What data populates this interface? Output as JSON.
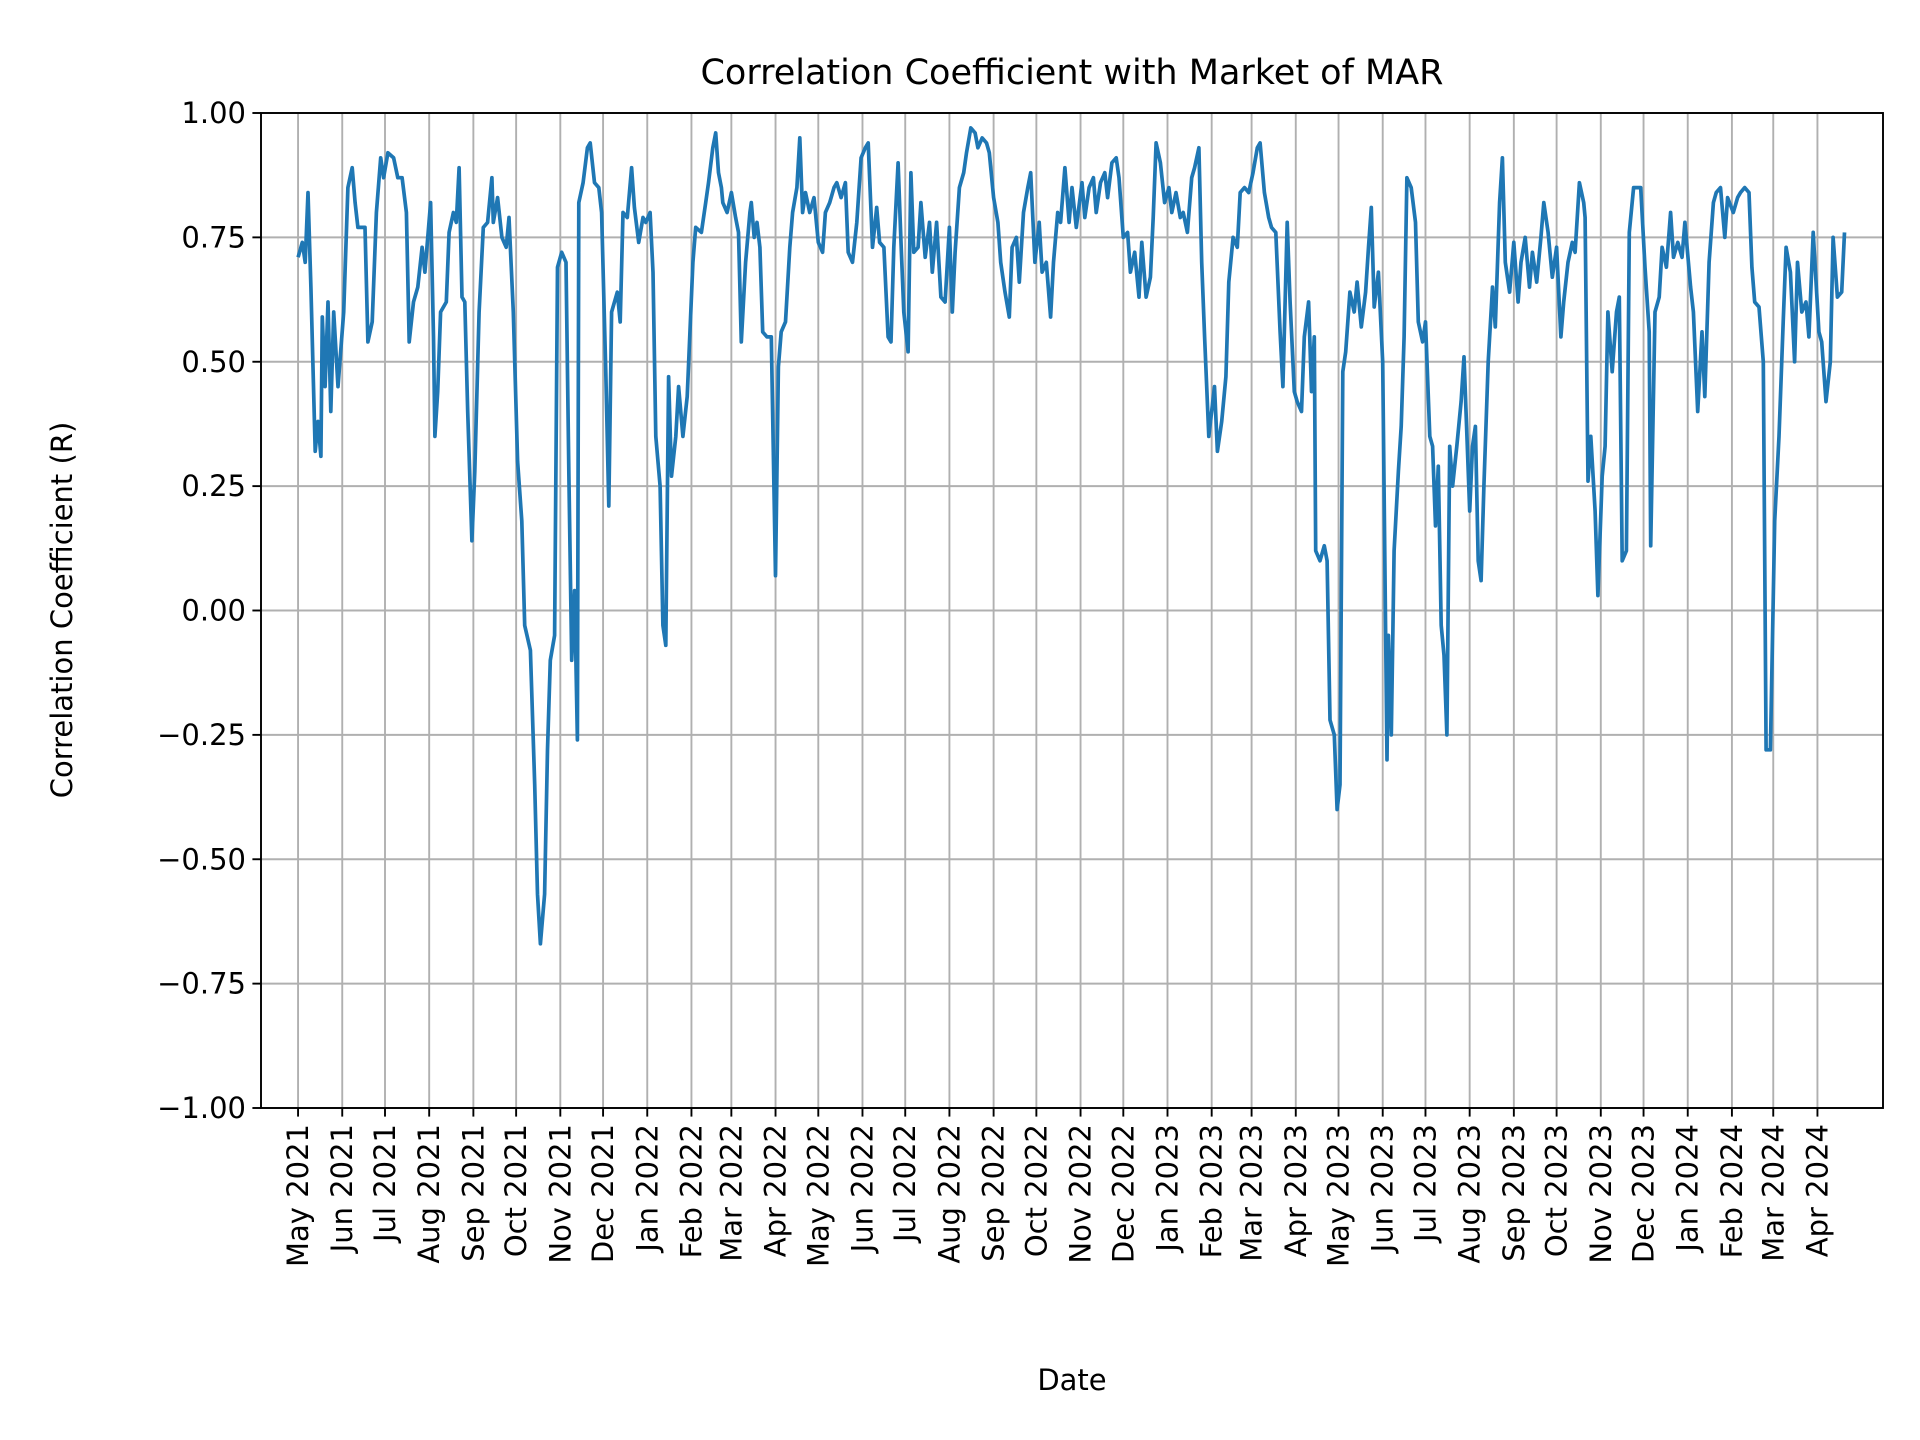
{
  "chart_data": {
    "type": "line",
    "title": "Correlation Coefficient with Market of MAR",
    "xlabel": "Date",
    "ylabel": "Correlation Coefficient (R)",
    "ylim": [
      -1.0,
      1.0
    ],
    "yticks": [
      "−1.00",
      "−0.75",
      "−0.50",
      "−0.25",
      "0.00",
      "0.25",
      "0.50",
      "0.75",
      "1.00"
    ],
    "ytick_values": [
      -1.0,
      -0.75,
      -0.5,
      -0.25,
      0.0,
      0.25,
      0.5,
      0.75,
      1.0
    ],
    "xticks": [
      "May 2021",
      "Jun 2021",
      "Jul 2021",
      "Aug 2021",
      "Sep 2021",
      "Oct 2021",
      "Nov 2021",
      "Dec 2021",
      "Jan 2022",
      "Feb 2022",
      "Mar 2022",
      "Apr 2022",
      "May 2022",
      "Jun 2022",
      "Jul 2022",
      "Aug 2022",
      "Sep 2022",
      "Oct 2022",
      "Nov 2022",
      "Dec 2022",
      "Jan 2023",
      "Feb 2023",
      "Mar 2023",
      "Apr 2023",
      "May 2023",
      "Jun 2023",
      "Jul 2023",
      "Aug 2023",
      "Sep 2023",
      "Oct 2023",
      "Nov 2023",
      "Dec 2023",
      "Jan 2024",
      "Feb 2024",
      "Mar 2024",
      "Apr 2024"
    ],
    "xtick_dates": [
      "2021-05-01",
      "2021-06-01",
      "2021-07-01",
      "2021-08-01",
      "2021-09-01",
      "2021-10-01",
      "2021-11-01",
      "2021-12-01",
      "2022-01-01",
      "2022-02-01",
      "2022-03-01",
      "2022-04-01",
      "2022-05-01",
      "2022-06-01",
      "2022-07-01",
      "2022-08-01",
      "2022-09-01",
      "2022-10-01",
      "2022-11-01",
      "2022-12-01",
      "2023-01-01",
      "2023-02-01",
      "2023-03-01",
      "2023-04-01",
      "2023-05-01",
      "2023-06-01",
      "2023-07-01",
      "2023-08-01",
      "2023-09-01",
      "2023-10-01",
      "2023-11-01",
      "2023-12-01",
      "2024-01-01",
      "2024-02-01",
      "2024-03-01",
      "2024-04-01"
    ],
    "xlim": [
      "2021-04-05",
      "2024-05-17"
    ],
    "grid": true,
    "color": "#1f77b4",
    "series": [
      {
        "x": [
          "2021-05-01",
          "2021-05-04",
          "2021-05-06",
          "2021-05-08",
          "2021-05-10",
          "2021-05-13",
          "2021-05-15",
          "2021-05-17",
          "2021-05-18",
          "2021-05-20",
          "2021-05-22",
          "2021-05-24",
          "2021-05-26",
          "2021-05-29",
          "2021-06-02",
          "2021-06-05",
          "2021-06-08",
          "2021-06-10",
          "2021-06-12",
          "2021-06-17",
          "2021-06-19",
          "2021-06-22",
          "2021-06-25",
          "2021-06-28",
          "2021-06-30",
          "2021-07-03",
          "2021-07-07",
          "2021-07-10",
          "2021-07-13",
          "2021-07-16",
          "2021-07-18",
          "2021-07-21",
          "2021-07-24",
          "2021-07-27",
          "2021-07-29",
          "2021-08-02",
          "2021-08-04",
          "2021-08-05",
          "2021-08-07",
          "2021-08-09",
          "2021-08-13",
          "2021-08-15",
          "2021-08-18",
          "2021-08-20",
          "2021-08-22",
          "2021-08-24",
          "2021-08-26",
          "2021-08-28",
          "2021-08-31",
          "2021-09-02",
          "2021-09-05",
          "2021-09-08",
          "2021-09-11",
          "2021-09-14",
          "2021-09-15",
          "2021-09-18",
          "2021-09-21",
          "2021-09-24",
          "2021-09-26",
          "2021-09-29",
          "2021-10-02",
          "2021-10-05",
          "2021-10-07",
          "2021-10-11",
          "2021-10-14",
          "2021-10-16",
          "2021-10-18",
          "2021-10-21",
          "2021-10-23",
          "2021-10-25",
          "2021-10-28",
          "2021-10-30",
          "2021-11-02",
          "2021-11-05",
          "2021-11-07",
          "2021-11-09",
          "2021-11-11",
          "2021-11-13",
          "2021-11-14",
          "2021-11-17",
          "2021-11-20",
          "2021-11-22",
          "2021-11-25",
          "2021-11-28",
          "2021-11-30",
          "2021-12-03",
          "2021-12-05",
          "2021-12-07",
          "2021-12-11",
          "2021-12-13",
          "2021-12-15",
          "2021-12-18",
          "2021-12-21",
          "2021-12-23",
          "2021-12-26",
          "2021-12-29",
          "2021-12-31",
          "2022-01-03",
          "2022-01-05",
          "2022-01-07",
          "2022-01-10",
          "2022-01-12",
          "2022-01-14",
          "2022-01-16",
          "2022-01-18",
          "2022-01-21",
          "2022-01-23",
          "2022-01-26",
          "2022-01-29",
          "2022-02-02",
          "2022-02-04",
          "2022-02-08",
          "2022-02-11",
          "2022-02-13",
          "2022-02-16",
          "2022-02-18",
          "2022-02-20",
          "2022-02-22",
          "2022-02-23",
          "2022-02-26",
          "2022-03-01",
          "2022-03-04",
          "2022-03-06",
          "2022-03-08",
          "2022-03-11",
          "2022-03-14",
          "2022-03-15",
          "2022-03-17",
          "2022-03-19",
          "2022-03-21",
          "2022-03-23",
          "2022-03-26",
          "2022-03-29",
          "2022-04-01",
          "2022-04-03",
          "2022-04-05",
          "2022-04-08",
          "2022-04-11",
          "2022-04-13",
          "2022-04-16",
          "2022-04-18",
          "2022-04-20",
          "2022-04-22",
          "2022-04-25",
          "2022-04-28",
          "2022-05-01",
          "2022-05-04",
          "2022-05-06",
          "2022-05-09",
          "2022-05-12",
          "2022-05-14",
          "2022-05-17",
          "2022-05-20",
          "2022-05-22",
          "2022-05-25",
          "2022-05-28",
          "2022-05-31",
          "2022-06-03",
          "2022-06-05",
          "2022-06-08",
          "2022-06-11",
          "2022-06-13",
          "2022-06-16",
          "2022-06-19",
          "2022-06-21",
          "2022-06-23",
          "2022-06-26",
          "2022-06-28",
          "2022-06-30",
          "2022-07-03",
          "2022-07-05",
          "2022-07-07",
          "2022-07-10",
          "2022-07-12",
          "2022-07-15",
          "2022-07-18",
          "2022-07-20",
          "2022-07-23",
          "2022-07-26",
          "2022-07-29",
          "2022-08-01",
          "2022-08-03",
          "2022-08-05",
          "2022-08-08",
          "2022-08-11",
          "2022-08-13",
          "2022-08-16",
          "2022-08-19",
          "2022-08-21",
          "2022-08-24",
          "2022-08-27",
          "2022-08-29",
          "2022-09-01",
          "2022-09-04",
          "2022-09-06",
          "2022-09-09",
          "2022-09-12",
          "2022-09-14",
          "2022-09-17",
          "2022-09-19",
          "2022-09-22",
          "2022-09-25",
          "2022-09-27",
          "2022-09-30",
          "2022-10-03",
          "2022-10-05",
          "2022-10-08",
          "2022-10-11",
          "2022-10-13",
          "2022-10-16",
          "2022-10-18",
          "2022-10-21",
          "2022-10-24",
          "2022-10-26",
          "2022-10-29",
          "2022-11-02",
          "2022-11-04",
          "2022-11-07",
          "2022-11-10",
          "2022-11-12",
          "2022-11-15",
          "2022-11-18",
          "2022-11-20",
          "2022-11-23",
          "2022-11-26",
          "2022-11-28",
          "2022-12-01",
          "2022-12-04",
          "2022-12-06",
          "2022-12-09",
          "2022-12-12",
          "2022-12-14",
          "2022-12-17",
          "2022-12-20",
          "2022-12-22",
          "2022-12-24",
          "2022-12-27",
          "2022-12-30",
          "2023-01-02",
          "2023-01-04",
          "2023-01-07",
          "2023-01-10",
          "2023-01-12",
          "2023-01-15",
          "2023-01-18",
          "2023-01-20",
          "2023-01-23",
          "2023-01-25",
          "2023-01-27",
          "2023-01-30",
          "2023-02-03",
          "2023-02-05",
          "2023-02-08",
          "2023-02-11",
          "2023-02-13",
          "2023-02-16",
          "2023-02-19",
          "2023-02-21",
          "2023-02-24",
          "2023-02-27",
          "2023-03-02",
          "2023-03-05",
          "2023-03-07",
          "2023-03-10",
          "2023-03-13",
          "2023-03-15",
          "2023-03-18",
          "2023-03-21",
          "2023-03-23",
          "2023-03-26",
          "2023-03-28",
          "2023-03-31",
          "2023-04-02",
          "2023-04-05",
          "2023-04-07",
          "2023-04-10",
          "2023-04-12",
          "2023-04-14",
          "2023-04-15",
          "2023-04-18",
          "2023-04-21",
          "2023-04-23",
          "2023-04-25",
          "2023-04-28",
          "2023-04-30",
          "2023-05-02",
          "2023-05-04",
          "2023-05-06",
          "2023-05-09",
          "2023-05-12",
          "2023-05-14",
          "2023-05-17",
          "2023-05-20",
          "2023-05-22",
          "2023-05-24",
          "2023-05-26",
          "2023-05-29",
          "2023-06-01",
          "2023-06-04",
          "2023-06-05",
          "2023-06-07",
          "2023-06-09",
          "2023-06-12",
          "2023-06-14",
          "2023-06-16",
          "2023-06-18",
          "2023-06-21",
          "2023-06-24",
          "2023-06-26",
          "2023-06-29",
          "2023-07-01",
          "2023-07-04",
          "2023-07-06",
          "2023-07-08",
          "2023-07-10",
          "2023-07-12",
          "2023-07-14",
          "2023-07-16",
          "2023-07-18",
          "2023-07-20",
          "2023-07-23",
          "2023-07-26",
          "2023-07-28",
          "2023-08-01",
          "2023-08-03",
          "2023-08-05",
          "2023-08-07",
          "2023-08-09",
          "2023-08-11",
          "2023-08-14",
          "2023-08-17",
          "2023-08-19",
          "2023-08-22",
          "2023-08-24",
          "2023-08-26",
          "2023-08-29",
          "2023-09-01",
          "2023-09-04",
          "2023-09-06",
          "2023-09-09",
          "2023-09-12",
          "2023-09-14",
          "2023-09-17",
          "2023-09-20",
          "2023-09-22",
          "2023-09-25",
          "2023-09-28",
          "2023-10-01",
          "2023-10-04",
          "2023-10-06",
          "2023-10-09",
          "2023-10-12",
          "2023-10-14",
          "2023-10-17",
          "2023-10-20",
          "2023-10-21",
          "2023-10-23",
          "2023-10-25",
          "2023-10-28",
          "2023-10-30",
          "2023-11-02",
          "2023-11-04",
          "2023-11-06",
          "2023-11-09",
          "2023-11-12",
          "2023-11-14",
          "2023-11-16",
          "2023-11-19",
          "2023-11-21",
          "2023-11-24",
          "2023-11-27",
          "2023-11-29",
          "2023-12-02",
          "2023-12-05",
          "2023-12-06",
          "2023-12-09",
          "2023-12-12",
          "2023-12-14",
          "2023-12-17",
          "2023-12-20",
          "2023-12-22",
          "2023-12-25",
          "2023-12-28",
          "2023-12-30",
          "2024-01-03",
          "2024-01-05",
          "2024-01-08",
          "2024-01-11",
          "2024-01-13",
          "2024-01-16",
          "2024-01-19",
          "2024-01-21",
          "2024-01-24",
          "2024-01-27",
          "2024-01-29",
          "2024-02-02",
          "2024-02-05",
          "2024-02-07",
          "2024-02-10",
          "2024-02-13",
          "2024-02-15",
          "2024-02-17",
          "2024-02-20",
          "2024-02-23",
          "2024-02-25",
          "2024-02-28",
          "2024-03-02",
          "2024-03-05",
          "2024-03-08",
          "2024-03-10",
          "2024-03-13",
          "2024-03-16",
          "2024-03-18",
          "2024-03-21",
          "2024-03-24",
          "2024-03-26",
          "2024-03-29",
          "2024-04-02",
          "2024-04-04",
          "2024-04-07",
          "2024-04-10",
          "2024-04-12",
          "2024-04-15",
          "2024-04-18",
          "2024-04-20"
        ],
        "y": [
          0.71,
          0.74,
          0.7,
          0.84,
          0.65,
          0.32,
          0.38,
          0.31,
          0.59,
          0.45,
          0.62,
          0.4,
          0.6,
          0.45,
          0.6,
          0.85,
          0.89,
          0.82,
          0.77,
          0.77,
          0.54,
          0.58,
          0.8,
          0.91,
          0.87,
          0.92,
          0.91,
          0.87,
          0.87,
          0.8,
          0.54,
          0.62,
          0.65,
          0.73,
          0.68,
          0.82,
          0.55,
          0.35,
          0.44,
          0.6,
          0.62,
          0.76,
          0.8,
          0.78,
          0.89,
          0.63,
          0.62,
          0.4,
          0.14,
          0.28,
          0.6,
          0.77,
          0.78,
          0.87,
          0.78,
          0.83,
          0.75,
          0.73,
          0.79,
          0.6,
          0.3,
          0.18,
          -0.03,
          -0.08,
          -0.35,
          -0.57,
          -0.67,
          -0.57,
          -0.28,
          -0.1,
          -0.05,
          0.69,
          0.72,
          0.7,
          0.27,
          -0.1,
          0.04,
          -0.26,
          0.82,
          0.86,
          0.93,
          0.94,
          0.86,
          0.85,
          0.8,
          0.47,
          0.21,
          0.6,
          0.64,
          0.58,
          0.8,
          0.79,
          0.89,
          0.81,
          0.74,
          0.79,
          0.78,
          0.8,
          0.68,
          0.35,
          0.25,
          -0.03,
          -0.07,
          0.47,
          0.27,
          0.35,
          0.45,
          0.35,
          0.43,
          0.7,
          0.77,
          0.76,
          0.82,
          0.86,
          0.93,
          0.96,
          0.88,
          0.85,
          0.82,
          0.8,
          0.84,
          0.79,
          0.76,
          0.54,
          0.7,
          0.8,
          0.82,
          0.75,
          0.78,
          0.73,
          0.56,
          0.55,
          0.55,
          0.07,
          0.49,
          0.56,
          0.58,
          0.73,
          0.8,
          0.85,
          0.95,
          0.8,
          0.84,
          0.8,
          0.83,
          0.74,
          0.72,
          0.8,
          0.82,
          0.85,
          0.86,
          0.83,
          0.86,
          0.72,
          0.7,
          0.78,
          0.91,
          0.93,
          0.94,
          0.73,
          0.81,
          0.74,
          0.73,
          0.55,
          0.54,
          0.73,
          0.9,
          0.74,
          0.6,
          0.52,
          0.88,
          0.72,
          0.73,
          0.82,
          0.71,
          0.78,
          0.68,
          0.78,
          0.63,
          0.62,
          0.77,
          0.6,
          0.72,
          0.85,
          0.88,
          0.92,
          0.97,
          0.96,
          0.93,
          0.95,
          0.94,
          0.92,
          0.83,
          0.78,
          0.7,
          0.64,
          0.59,
          0.73,
          0.75,
          0.66,
          0.8,
          0.85,
          0.88,
          0.7,
          0.78,
          0.68,
          0.7,
          0.59,
          0.7,
          0.8,
          0.78,
          0.89,
          0.78,
          0.85,
          0.77,
          0.86,
          0.79,
          0.85,
          0.87,
          0.8,
          0.86,
          0.88,
          0.83,
          0.9,
          0.91,
          0.87,
          0.75,
          0.76,
          0.68,
          0.72,
          0.63,
          0.74,
          0.63,
          0.67,
          0.79,
          0.94,
          0.9,
          0.82,
          0.85,
          0.8,
          0.84,
          0.79,
          0.8,
          0.76,
          0.87,
          0.89,
          0.93,
          0.7,
          0.55,
          0.35,
          0.45,
          0.32,
          0.38,
          0.47,
          0.66,
          0.75,
          0.73,
          0.84,
          0.85,
          0.84,
          0.88,
          0.93,
          0.94,
          0.84,
          0.79,
          0.77,
          0.76,
          0.56,
          0.45,
          0.78,
          0.62,
          0.44,
          0.42,
          0.4,
          0.55,
          0.62,
          0.44,
          0.55,
          0.12,
          0.1,
          0.13,
          0.1,
          -0.22,
          -0.25,
          -0.4,
          -0.35,
          0.48,
          0.52,
          0.64,
          0.6,
          0.66,
          0.57,
          0.64,
          0.73,
          0.81,
          0.61,
          0.68,
          0.5,
          -0.3,
          -0.05,
          -0.25,
          0.12,
          0.28,
          0.37,
          0.55,
          0.87,
          0.85,
          0.78,
          0.58,
          0.54,
          0.58,
          0.35,
          0.33,
          0.17,
          0.29,
          -0.03,
          -0.09,
          -0.25,
          0.33,
          0.25,
          0.33,
          0.42,
          0.51,
          0.2,
          0.33,
          0.37,
          0.1,
          0.06,
          0.25,
          0.5,
          0.65,
          0.57,
          0.82,
          0.91,
          0.7,
          0.64,
          0.74,
          0.62,
          0.7,
          0.75,
          0.65,
          0.72,
          0.66,
          0.75,
          0.82,
          0.76,
          0.67,
          0.73,
          0.55,
          0.62,
          0.7,
          0.74,
          0.72,
          0.86,
          0.82,
          0.79,
          0.26,
          0.35,
          0.2,
          0.03,
          0.27,
          0.33,
          0.6,
          0.48,
          0.6,
          0.63,
          0.1,
          0.12,
          0.76,
          0.85,
          0.85,
          0.85,
          0.69,
          0.56,
          0.13,
          0.6,
          0.63,
          0.73,
          0.69,
          0.8,
          0.71,
          0.74,
          0.71,
          0.78,
          0.65,
          0.6,
          0.4,
          0.56,
          0.43,
          0.7,
          0.82,
          0.84,
          0.85,
          0.75,
          0.83,
          0.8,
          0.83,
          0.84,
          0.85,
          0.84,
          0.69,
          0.62,
          0.61,
          0.5,
          -0.28,
          -0.28,
          0.18,
          0.35,
          0.58,
          0.73,
          0.68,
          0.5,
          0.7,
          0.6,
          0.62,
          0.55,
          0.76,
          0.56,
          0.54,
          0.42,
          0.5,
          0.75,
          0.63,
          0.64,
          0.76
        ]
      }
    ]
  }
}
